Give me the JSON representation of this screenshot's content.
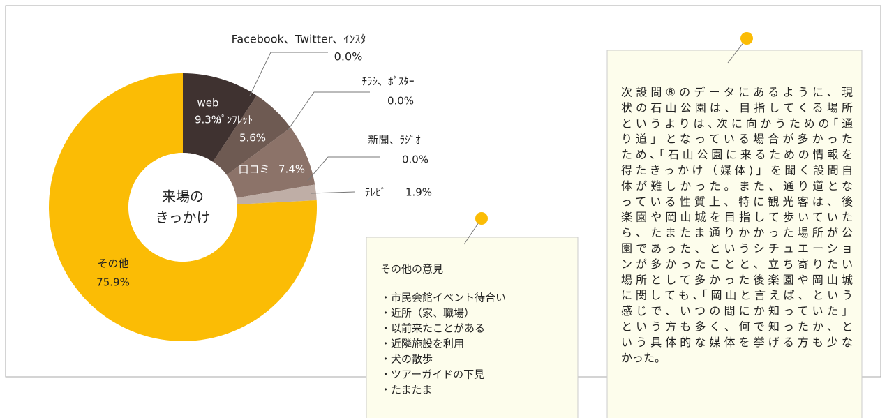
{
  "chart_data": {
    "type": "donut",
    "title": [
      "来場の",
      "きっかけ"
    ],
    "categories": [
      "web",
      "Facebook、Twitter、ｲﾝｽﾀ",
      "ﾊﾟﾝﾌﾚｯﾄ",
      "ﾁﾗｼ、ﾎﾟｽﾀｰ",
      "口コミ",
      "新聞、ﾗｼﾞｵ",
      "ﾃﾚﾋﾞ",
      "その他"
    ],
    "values": [
      9.3,
      0.0,
      5.6,
      0.0,
      7.4,
      0.0,
      1.9,
      75.9
    ],
    "value_labels": [
      "9.3%",
      "0.0%",
      "5.6%",
      "0.0%",
      "7.4%",
      "0.0%",
      "1.9%",
      "75.9%"
    ],
    "colors": [
      "#3f3230",
      "#3f3230",
      "#6e5a52",
      "#7d665d",
      "#8c7369",
      "#a8958c",
      "#bfaea6",
      "#fbbc05"
    ]
  },
  "notes": [
    {
      "title": "その他の意見",
      "items": [
        "・市民会館イベント待合い",
        "・近所（家、職場）",
        "・以前来たことがある",
        "・近隣施設を利用",
        "・犬の散歩",
        "・ツアーガイドの下見",
        "・たまたま"
      ]
    },
    {
      "lines": [
        "次設問⑧のデータにあるように、現",
        "状の石山公園は、目指してくる場所",
        "というよりは､次に向かうための｢通",
        "り道」となっている場合が多かった",
        "ため､｢石山公園に来るための情報を",
        "得たきっかけ（媒体)」を聞く設問自",
        "体が難しかった。また、通り道とな",
        "っている性質上、特に観光客は、後",
        "楽園や岡山城を目指して歩いていた",
        "ら、たまたま通りかかった場所が公",
        "園であった、というシチュエーショ",
        "ンが多かったことと、立ち寄りたい",
        "場所として多かった後楽園や岡山城",
        "に関しても､｢岡山と言えば、という",
        "感じで、いつの間にか知っていた」",
        "という方も多く、何で知ったか、と",
        "いう具体的な媒体を挙げる方も少な",
        "かった。"
      ]
    }
  ]
}
